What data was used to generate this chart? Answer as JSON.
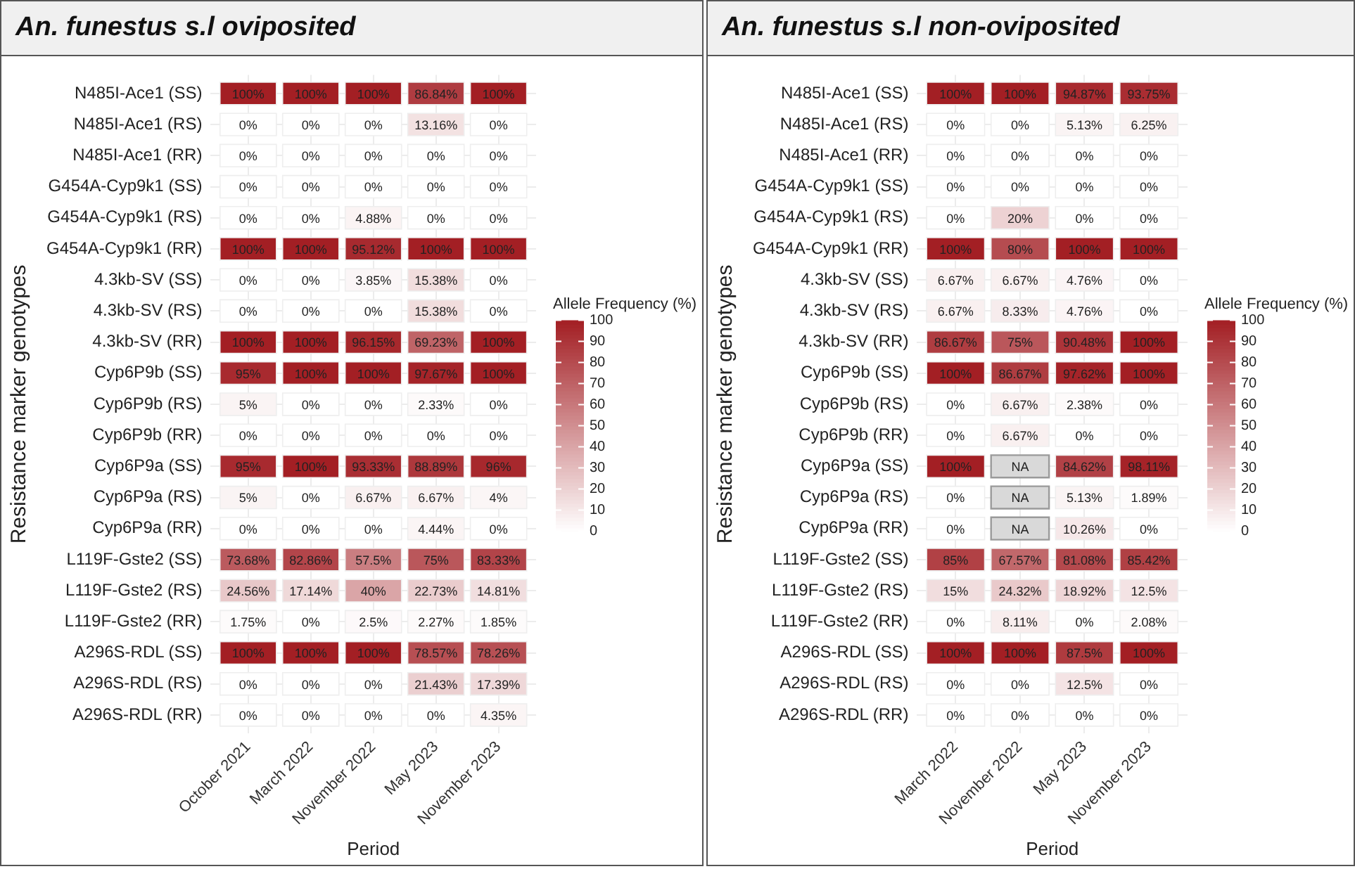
{
  "chart_data": [
    {
      "type": "heatmap",
      "title": "An. funestus s.l oviposited",
      "xlabel": "Period",
      "ylabel": "Resistance marker genotypes",
      "clabel": "Allele Frequency (%)",
      "grid": true,
      "clim": [
        0,
        100
      ],
      "cticks": [
        0,
        10,
        20,
        30,
        40,
        50,
        60,
        70,
        80,
        90,
        100
      ],
      "categories": [
        "October 2021",
        "March 2022",
        "November 2022",
        "May 2023",
        "November 2023"
      ],
      "y_categories": [
        "N485I-Ace1 (SS)",
        "N485I-Ace1 (RS)",
        "N485I-Ace1 (RR)",
        "G454A-Cyp9k1 (SS)",
        "G454A-Cyp9k1 (RS)",
        "G454A-Cyp9k1 (RR)",
        "4.3kb-SV (SS)",
        "4.3kb-SV (RS)",
        "4.3kb-SV (RR)",
        "Cyp6P9b (SS)",
        "Cyp6P9b (RS)",
        "Cyp6P9b (RR)",
        "Cyp6P9a (SS)",
        "Cyp6P9a (RS)",
        "Cyp6P9a (RR)",
        "L119F-Gste2 (SS)",
        "L119F-Gste2 (RS)",
        "L119F-Gste2 (RR)",
        "A296S-RDL (SS)",
        "A296S-RDL (RS)",
        "A296S-RDL (RR)"
      ],
      "cells": [
        [
          100,
          100,
          100,
          86.84,
          100
        ],
        [
          0,
          0,
          0,
          13.16,
          0
        ],
        [
          0,
          0,
          0,
          0,
          0
        ],
        [
          0,
          0,
          0,
          0,
          0
        ],
        [
          0,
          0,
          4.88,
          0,
          0
        ],
        [
          100,
          100,
          95.12,
          100,
          100
        ],
        [
          0,
          0,
          3.85,
          15.38,
          0
        ],
        [
          0,
          0,
          0,
          15.38,
          0
        ],
        [
          100,
          100,
          96.15,
          69.23,
          100
        ],
        [
          95,
          100,
          100,
          97.67,
          100
        ],
        [
          5,
          0,
          0,
          2.33,
          0
        ],
        [
          0,
          0,
          0,
          0,
          0
        ],
        [
          95,
          100,
          93.33,
          88.89,
          96
        ],
        [
          5,
          0,
          6.67,
          6.67,
          4
        ],
        [
          0,
          0,
          0,
          4.44,
          0
        ],
        [
          73.68,
          82.86,
          57.5,
          75,
          83.33
        ],
        [
          24.56,
          17.14,
          40,
          22.73,
          14.81
        ],
        [
          1.75,
          0,
          2.5,
          2.27,
          1.85
        ],
        [
          100,
          100,
          100,
          78.57,
          78.26
        ],
        [
          0,
          0,
          0,
          21.43,
          17.39
        ],
        [
          0,
          0,
          0,
          0,
          4.35
        ]
      ],
      "cell_labels": [
        [
          "100%",
          "100%",
          "100%",
          "86.84%",
          "100%"
        ],
        [
          "0%",
          "0%",
          "0%",
          "13.16%",
          "0%"
        ],
        [
          "0%",
          "0%",
          "0%",
          "0%",
          "0%"
        ],
        [
          "0%",
          "0%",
          "0%",
          "0%",
          "0%"
        ],
        [
          "0%",
          "0%",
          "4.88%",
          "0%",
          "0%"
        ],
        [
          "100%",
          "100%",
          "95.12%",
          "100%",
          "100%"
        ],
        [
          "0%",
          "0%",
          "3.85%",
          "15.38%",
          "0%"
        ],
        [
          "0%",
          "0%",
          "0%",
          "15.38%",
          "0%"
        ],
        [
          "100%",
          "100%",
          "96.15%",
          "69.23%",
          "100%"
        ],
        [
          "95%",
          "100%",
          "100%",
          "97.67%",
          "100%"
        ],
        [
          "5%",
          "0%",
          "0%",
          "2.33%",
          "0%"
        ],
        [
          "0%",
          "0%",
          "0%",
          "0%",
          "0%"
        ],
        [
          "95%",
          "100%",
          "93.33%",
          "88.89%",
          "96%"
        ],
        [
          "5%",
          "0%",
          "6.67%",
          "6.67%",
          "4%"
        ],
        [
          "0%",
          "0%",
          "0%",
          "4.44%",
          "0%"
        ],
        [
          "73.68%",
          "82.86%",
          "57.5%",
          "75%",
          "83.33%"
        ],
        [
          "24.56%",
          "17.14%",
          "40%",
          "22.73%",
          "14.81%"
        ],
        [
          "1.75%",
          "0%",
          "2.5%",
          "2.27%",
          "1.85%"
        ],
        [
          "100%",
          "100%",
          "100%",
          "78.57%",
          "78.26%"
        ],
        [
          "0%",
          "0%",
          "0%",
          "21.43%",
          "17.39%"
        ],
        [
          "0%",
          "0%",
          "0%",
          "0%",
          "4.35%"
        ]
      ]
    },
    {
      "type": "heatmap",
      "title": "An. funestus s.l non-oviposited",
      "xlabel": "Period",
      "ylabel": "Resistance marker genotypes",
      "clabel": "Allele Frequency (%)",
      "grid": true,
      "clim": [
        0,
        100
      ],
      "cticks": [
        0,
        10,
        20,
        30,
        40,
        50,
        60,
        70,
        80,
        90,
        100
      ],
      "categories": [
        "March 2022",
        "November 2022",
        "May 2023",
        "November 2023"
      ],
      "y_categories": [
        "N485I-Ace1 (SS)",
        "N485I-Ace1 (RS)",
        "N485I-Ace1 (RR)",
        "G454A-Cyp9k1 (SS)",
        "G454A-Cyp9k1 (RS)",
        "G454A-Cyp9k1 (RR)",
        "4.3kb-SV (SS)",
        "4.3kb-SV (RS)",
        "4.3kb-SV (RR)",
        "Cyp6P9b (SS)",
        "Cyp6P9b (RS)",
        "Cyp6P9b (RR)",
        "Cyp6P9a (SS)",
        "Cyp6P9a (RS)",
        "Cyp6P9a (RR)",
        "L119F-Gste2 (SS)",
        "L119F-Gste2 (RS)",
        "L119F-Gste2 (RR)",
        "A296S-RDL (SS)",
        "A296S-RDL (RS)",
        "A296S-RDL (RR)"
      ],
      "cells": [
        [
          100,
          100,
          94.87,
          93.75
        ],
        [
          0,
          0,
          5.13,
          6.25
        ],
        [
          0,
          0,
          0,
          0
        ],
        [
          0,
          0,
          0,
          0
        ],
        [
          0,
          20,
          0,
          0
        ],
        [
          100,
          80,
          100,
          100
        ],
        [
          6.67,
          6.67,
          4.76,
          0
        ],
        [
          6.67,
          8.33,
          4.76,
          0
        ],
        [
          86.67,
          75,
          90.48,
          100
        ],
        [
          100,
          86.67,
          97.62,
          100
        ],
        [
          0,
          6.67,
          2.38,
          0
        ],
        [
          0,
          6.67,
          0,
          0
        ],
        [
          100,
          null,
          84.62,
          98.11
        ],
        [
          0,
          null,
          5.13,
          1.89
        ],
        [
          0,
          null,
          10.26,
          0
        ],
        [
          85,
          67.57,
          81.08,
          85.42
        ],
        [
          15,
          24.32,
          18.92,
          12.5
        ],
        [
          0,
          8.11,
          0,
          2.08
        ],
        [
          100,
          100,
          87.5,
          100
        ],
        [
          0,
          0,
          12.5,
          0
        ],
        [
          0,
          0,
          0,
          0
        ]
      ],
      "cell_labels": [
        [
          "100%",
          "100%",
          "94.87%",
          "93.75%"
        ],
        [
          "0%",
          "0%",
          "5.13%",
          "6.25%"
        ],
        [
          "0%",
          "0%",
          "0%",
          "0%"
        ],
        [
          "0%",
          "0%",
          "0%",
          "0%"
        ],
        [
          "0%",
          "20%",
          "0%",
          "0%"
        ],
        [
          "100%",
          "80%",
          "100%",
          "100%"
        ],
        [
          "6.67%",
          "6.67%",
          "4.76%",
          "0%"
        ],
        [
          "6.67%",
          "8.33%",
          "4.76%",
          "0%"
        ],
        [
          "86.67%",
          "75%",
          "90.48%",
          "100%"
        ],
        [
          "100%",
          "86.67%",
          "97.62%",
          "100%"
        ],
        [
          "0%",
          "6.67%",
          "2.38%",
          "0%"
        ],
        [
          "0%",
          "6.67%",
          "0%",
          "0%"
        ],
        [
          "100%",
          "NA",
          "84.62%",
          "98.11%"
        ],
        [
          "0%",
          "NA",
          "5.13%",
          "1.89%"
        ],
        [
          "0%",
          "NA",
          "10.26%",
          "0%"
        ],
        [
          "85%",
          "67.57%",
          "81.08%",
          "85.42%"
        ],
        [
          "15%",
          "24.32%",
          "18.92%",
          "12.5%"
        ],
        [
          "0%",
          "8.11%",
          "0%",
          "2.08%"
        ],
        [
          "100%",
          "100%",
          "87.5%",
          "100%"
        ],
        [
          "0%",
          "0%",
          "12.5%",
          "0%"
        ],
        [
          "0%",
          "0%",
          "0%",
          "0%"
        ]
      ]
    }
  ]
}
